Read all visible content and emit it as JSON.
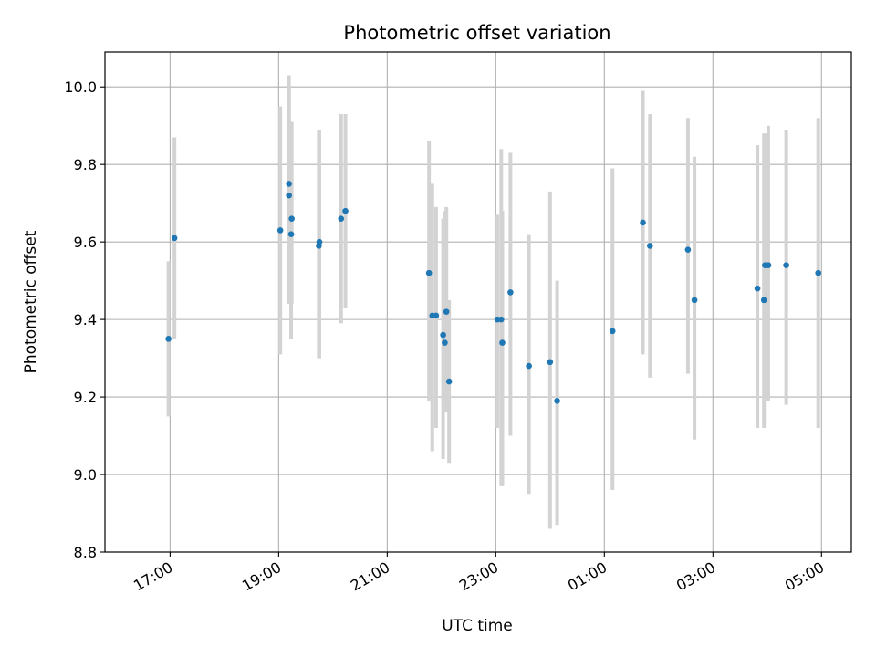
{
  "chart_data": {
    "type": "scatter",
    "title": "Photometric offset variation",
    "xlabel": "UTC time",
    "ylabel": "Photometric offset",
    "x_unit": "hours since 00:00 of first day (UTC)",
    "xlim": [
      15.8,
      29.55
    ],
    "ylim": [
      8.8,
      10.09
    ],
    "grid": true,
    "x_ticks": [
      {
        "value": 17,
        "label": "17:00"
      },
      {
        "value": 19,
        "label": "19:00"
      },
      {
        "value": 21,
        "label": "21:00"
      },
      {
        "value": 23,
        "label": "23:00"
      },
      {
        "value": 25,
        "label": "01:00"
      },
      {
        "value": 27,
        "label": "03:00"
      },
      {
        "value": 29,
        "label": "05:00"
      }
    ],
    "y_ticks": [
      {
        "value": 8.8,
        "label": "8.8"
      },
      {
        "value": 9.0,
        "label": "9.0"
      },
      {
        "value": 9.2,
        "label": "9.2"
      },
      {
        "value": 9.4,
        "label": "9.4"
      },
      {
        "value": 9.6,
        "label": "9.6"
      },
      {
        "value": 9.8,
        "label": "9.8"
      },
      {
        "value": 10.0,
        "label": "10.0"
      }
    ],
    "colors": {
      "point": "#1f77b4",
      "errorbar": "#d3d3d3",
      "grid": "#b0b0b0",
      "axes": "#000000"
    },
    "series": [
      {
        "name": "offset",
        "points": [
          {
            "t": 16.97,
            "y": 9.35,
            "lo": 9.15,
            "hi": 9.55
          },
          {
            "t": 17.08,
            "y": 9.61,
            "lo": 9.35,
            "hi": 9.87
          },
          {
            "t": 19.03,
            "y": 9.63,
            "lo": 9.31,
            "hi": 9.95
          },
          {
            "t": 19.19,
            "y": 9.75,
            "lo": 9.44,
            "hi": 10.03
          },
          {
            "t": 19.19,
            "y": 9.72,
            "lo": 9.44,
            "hi": 10.0
          },
          {
            "t": 19.24,
            "y": 9.66,
            "lo": 9.44,
            "hi": 9.91
          },
          {
            "t": 19.23,
            "y": 9.62,
            "lo": 9.35,
            "hi": 9.89
          },
          {
            "t": 19.74,
            "y": 9.59,
            "lo": 9.3,
            "hi": 9.89
          },
          {
            "t": 19.75,
            "y": 9.6,
            "lo": 9.3,
            "hi": 9.89
          },
          {
            "t": 20.15,
            "y": 9.66,
            "lo": 9.39,
            "hi": 9.93
          },
          {
            "t": 20.23,
            "y": 9.68,
            "lo": 9.43,
            "hi": 9.93
          },
          {
            "t": 21.77,
            "y": 9.52,
            "lo": 9.19,
            "hi": 9.86
          },
          {
            "t": 21.83,
            "y": 9.41,
            "lo": 9.06,
            "hi": 9.75
          },
          {
            "t": 21.9,
            "y": 9.41,
            "lo": 9.12,
            "hi": 9.69
          },
          {
            "t": 22.03,
            "y": 9.36,
            "lo": 9.04,
            "hi": 9.66
          },
          {
            "t": 22.06,
            "y": 9.34,
            "lo": 9.16,
            "hi": 9.68
          },
          {
            "t": 22.09,
            "y": 9.42,
            "lo": 9.16,
            "hi": 9.69
          },
          {
            "t": 22.14,
            "y": 9.24,
            "lo": 9.03,
            "hi": 9.45
          },
          {
            "t": 23.03,
            "y": 9.4,
            "lo": 9.12,
            "hi": 9.67
          },
          {
            "t": 23.12,
            "y": 9.34,
            "lo": 8.97,
            "hi": 9.68
          },
          {
            "t": 23.1,
            "y": 9.4,
            "lo": 8.97,
            "hi": 9.84
          },
          {
            "t": 23.27,
            "y": 9.47,
            "lo": 9.1,
            "hi": 9.83
          },
          {
            "t": 23.61,
            "y": 9.28,
            "lo": 8.95,
            "hi": 9.62
          },
          {
            "t": 24.0,
            "y": 9.29,
            "lo": 8.86,
            "hi": 9.73
          },
          {
            "t": 24.13,
            "y": 9.19,
            "lo": 8.87,
            "hi": 9.5
          },
          {
            "t": 25.15,
            "y": 9.37,
            "lo": 8.96,
            "hi": 9.79
          },
          {
            "t": 25.71,
            "y": 9.65,
            "lo": 9.31,
            "hi": 9.99
          },
          {
            "t": 25.84,
            "y": 9.59,
            "lo": 9.25,
            "hi": 9.93
          },
          {
            "t": 26.54,
            "y": 9.58,
            "lo": 9.26,
            "hi": 9.92
          },
          {
            "t": 26.66,
            "y": 9.45,
            "lo": 9.09,
            "hi": 9.82
          },
          {
            "t": 27.82,
            "y": 9.48,
            "lo": 9.12,
            "hi": 9.85
          },
          {
            "t": 27.94,
            "y": 9.45,
            "lo": 9.12,
            "hi": 9.88
          },
          {
            "t": 27.96,
            "y": 9.54,
            "lo": 9.19,
            "hi": 9.88
          },
          {
            "t": 28.02,
            "y": 9.54,
            "lo": 9.19,
            "hi": 9.9
          },
          {
            "t": 28.35,
            "y": 9.54,
            "lo": 9.18,
            "hi": 9.89
          },
          {
            "t": 28.94,
            "y": 9.52,
            "lo": 9.12,
            "hi": 9.92
          }
        ]
      }
    ]
  }
}
